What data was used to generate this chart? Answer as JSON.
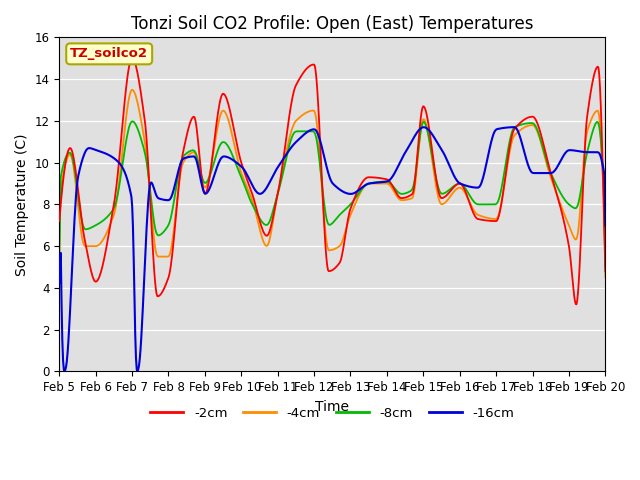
{
  "title": "Tonzi Soil CO2 Profile: Open (East) Temperatures",
  "xlabel": "Time",
  "ylabel": "Soil Temperature (C)",
  "ylim": [
    0,
    16
  ],
  "tick_labels": [
    "Feb 5",
    "Feb 6",
    "Feb 7",
    "Feb 8",
    "Feb 9",
    "Feb 10",
    "Feb 11",
    "Feb 12",
    "Feb 13",
    "Feb 14",
    "Feb 15",
    "Feb 16",
    "Feb 17",
    "Feb 18",
    "Feb 19",
    "Feb 20"
  ],
  "colors": {
    "-2cm": "#ff0000",
    "-4cm": "#ff8c00",
    "-8cm": "#00bb00",
    "-16cm": "#0000dd"
  },
  "legend_labels": [
    "-2cm",
    "-4cm",
    "-8cm",
    "-16cm"
  ],
  "label_box_text": "TZ_soilco2",
  "label_box_color": "#ffffcc",
  "label_box_text_color": "#cc0000",
  "bg_color": "#e0e0e0",
  "title_fontsize": 12,
  "axis_fontsize": 10,
  "tick_fontsize": 8.5
}
